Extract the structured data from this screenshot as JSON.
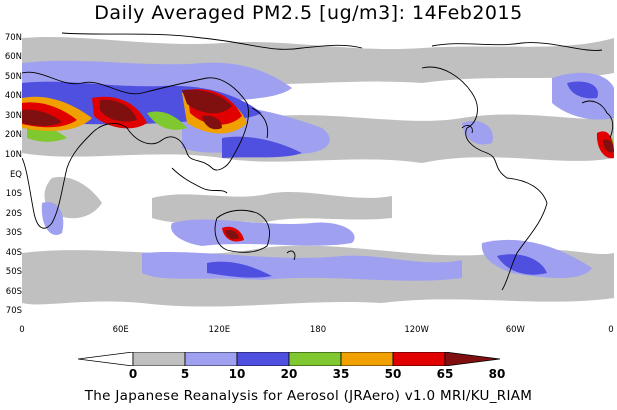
{
  "title": "Daily Averaged PM2.5 [ug/m3]: 14Feb2015",
  "caption": "The Japanese Reanalysis for Aerosol (JRAero) v1.0 MRI/KU_RIAM",
  "map": {
    "lon_range": [
      0,
      360
    ],
    "lat_range": [
      -75,
      75
    ],
    "lat_ticks": [
      "70N",
      "60N",
      "50N",
      "40N",
      "30N",
      "20N",
      "10N",
      "EQ",
      "10S",
      "20S",
      "30S",
      "40S",
      "50S",
      "60S",
      "70S"
    ],
    "lat_values": [
      70,
      60,
      50,
      40,
      30,
      20,
      10,
      0,
      -10,
      -20,
      -30,
      -40,
      -50,
      -60,
      -70
    ],
    "lon_ticks": [
      "0",
      "60E",
      "120E",
      "180",
      "120W",
      "60W",
      "0"
    ],
    "lon_values": [
      0,
      60,
      120,
      180,
      240,
      300,
      360
    ]
  },
  "legend": {
    "boundaries": [
      "0",
      "5",
      "10",
      "20",
      "35",
      "50",
      "65",
      "80"
    ],
    "colors": [
      "#ffffff",
      "#c0c0c0",
      "#a0a0f0",
      "#5050e0",
      "#7fc830",
      "#f0a000",
      "#e00000",
      "#801010"
    ]
  }
}
